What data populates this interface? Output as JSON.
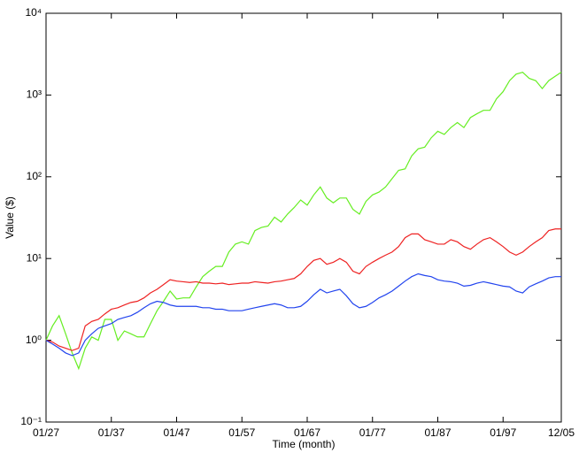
{
  "chart_data": {
    "type": "line",
    "x_label": "Time (month)",
    "y_label": "Value ($)",
    "x": [
      "01/27",
      "01/28",
      "01/29",
      "01/30",
      "01/31",
      "01/32",
      "01/33",
      "01/34",
      "01/35",
      "01/36",
      "01/37",
      "01/38",
      "01/39",
      "01/40",
      "01/41",
      "01/42",
      "01/43",
      "01/44",
      "01/45",
      "01/46",
      "01/47",
      "01/48",
      "01/49",
      "01/50",
      "01/51",
      "01/52",
      "01/53",
      "01/54",
      "01/55",
      "01/56",
      "01/57",
      "01/58",
      "01/59",
      "01/60",
      "01/61",
      "01/62",
      "01/63",
      "01/64",
      "01/65",
      "01/66",
      "01/67",
      "01/68",
      "01/69",
      "01/70",
      "01/71",
      "01/72",
      "01/73",
      "01/74",
      "01/75",
      "01/76",
      "01/77",
      "01/78",
      "01/79",
      "01/80",
      "01/81",
      "01/82",
      "01/83",
      "01/84",
      "01/85",
      "01/86",
      "01/87",
      "01/88",
      "01/89",
      "01/90",
      "01/91",
      "01/92",
      "01/93",
      "01/94",
      "01/95",
      "01/96",
      "01/97",
      "01/98",
      "01/99",
      "01/00",
      "01/01",
      "01/02",
      "01/03",
      "01/04",
      "01/05",
      "12/05"
    ],
    "series": [
      {
        "color": "#66ee22",
        "values": [
          1.0,
          1.5,
          2.0,
          1.2,
          0.7,
          0.45,
          0.8,
          1.1,
          1.0,
          1.8,
          1.8,
          1.0,
          1.3,
          1.2,
          1.1,
          1.1,
          1.6,
          2.3,
          3.0,
          4.0,
          3.2,
          3.3,
          3.3,
          4.5,
          6,
          7,
          8,
          8,
          12,
          15,
          16,
          15,
          22,
          24,
          25,
          32,
          28,
          35,
          42,
          52,
          45,
          60,
          75,
          55,
          48,
          55,
          55,
          40,
          35,
          50,
          60,
          65,
          75,
          95,
          120,
          125,
          180,
          220,
          230,
          300,
          360,
          330,
          400,
          460,
          400,
          530,
          590,
          650,
          650,
          900,
          1100,
          1500,
          1800,
          1900,
          1600,
          1500,
          1200,
          1500,
          1700,
          1900
        ]
      },
      {
        "color": "#ee2222",
        "values": [
          1.0,
          0.95,
          0.85,
          0.8,
          0.75,
          0.8,
          1.5,
          1.7,
          1.8,
          2.1,
          2.4,
          2.5,
          2.7,
          2.9,
          3.0,
          3.3,
          3.8,
          4.2,
          4.8,
          5.5,
          5.3,
          5.2,
          5.1,
          5.2,
          5.0,
          5.0,
          4.9,
          5.0,
          4.8,
          4.9,
          5.0,
          5.0,
          5.2,
          5.1,
          5.0,
          5.2,
          5.3,
          5.5,
          5.7,
          6.5,
          8.0,
          9.5,
          10,
          8.5,
          9.0,
          10,
          9,
          7,
          6.5,
          8,
          9,
          10,
          11,
          12,
          14,
          18,
          20,
          20,
          17,
          16,
          15,
          15,
          17,
          16,
          14,
          13,
          15,
          17,
          18,
          16,
          14,
          12,
          11,
          12,
          14,
          16,
          18,
          22,
          23,
          23
        ]
      },
      {
        "color": "#2244ee",
        "values": [
          1.0,
          0.9,
          0.8,
          0.7,
          0.65,
          0.7,
          1.0,
          1.2,
          1.4,
          1.5,
          1.6,
          1.8,
          1.9,
          2.0,
          2.2,
          2.5,
          2.8,
          3.0,
          2.9,
          2.7,
          2.6,
          2.6,
          2.6,
          2.6,
          2.5,
          2.5,
          2.4,
          2.4,
          2.3,
          2.3,
          2.3,
          2.4,
          2.5,
          2.6,
          2.7,
          2.8,
          2.7,
          2.5,
          2.5,
          2.6,
          3.0,
          3.6,
          4.2,
          3.8,
          4.0,
          4.2,
          3.5,
          2.8,
          2.5,
          2.6,
          2.9,
          3.3,
          3.6,
          4.0,
          4.6,
          5.3,
          6.0,
          6.5,
          6.2,
          6.0,
          5.5,
          5.3,
          5.2,
          5.0,
          4.6,
          4.7,
          5.0,
          5.2,
          5.0,
          4.8,
          4.6,
          4.5,
          4.0,
          3.8,
          4.5,
          4.9,
          5.3,
          5.8,
          6.0,
          6.0
        ]
      }
    ],
    "xlim": [
      "01/27",
      "12/05"
    ],
    "xticks": [
      "01/27",
      "01/37",
      "01/47",
      "01/57",
      "01/67",
      "01/77",
      "01/87",
      "01/97",
      "12/05"
    ],
    "ylim": [
      0.1,
      10000
    ],
    "log_y": true,
    "yticks": [
      {
        "value": 0.1,
        "label": "10⁻¹"
      },
      {
        "value": 1,
        "label": "10⁰"
      },
      {
        "value": 10,
        "label": "10¹"
      },
      {
        "value": 100,
        "label": "10²"
      },
      {
        "value": 1000,
        "label": "10³"
      },
      {
        "value": 10000,
        "label": "10⁴"
      }
    ],
    "grid": false
  }
}
